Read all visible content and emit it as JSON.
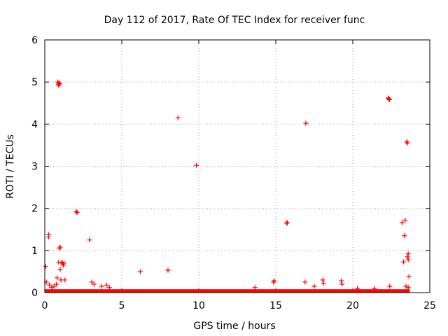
{
  "chart_data": {
    "type": "scatter",
    "title": "Day 112 of 2017, Rate Of TEC Index for receiver func",
    "xlabel": "GPS time / hours",
    "ylabel": "ROTI / TECUs",
    "xlim": [
      0,
      25
    ],
    "ylim": [
      0,
      6
    ],
    "x_ticks": [
      "0",
      "5",
      "10",
      "15",
      "20",
      "25"
    ],
    "y_ticks": [
      "0",
      "1",
      "2",
      "3",
      "4",
      "5",
      "6"
    ],
    "grid": true,
    "marker": "plus",
    "color": "#ff0000",
    "points": [
      [
        0.05,
        0.62
      ],
      [
        0.1,
        0.25
      ],
      [
        0.25,
        1.38
      ],
      [
        0.25,
        1.32
      ],
      [
        0.3,
        0.18
      ],
      [
        0.45,
        0.12
      ],
      [
        0.6,
        0.15
      ],
      [
        0.75,
        0.2
      ],
      [
        0.8,
        0.35
      ],
      [
        0.85,
        5.0
      ],
      [
        0.88,
        4.95
      ],
      [
        0.9,
        4.92
      ],
      [
        0.92,
        4.98
      ],
      [
        0.95,
        4.96
      ],
      [
        0.9,
        0.72
      ],
      [
        0.95,
        1.05
      ],
      [
        1.0,
        1.08
      ],
      [
        1.0,
        0.55
      ],
      [
        1.05,
        0.3
      ],
      [
        1.1,
        0.72
      ],
      [
        1.15,
        0.7
      ],
      [
        1.2,
        0.65
      ],
      [
        1.25,
        0.7
      ],
      [
        1.3,
        0.3
      ],
      [
        2.05,
        1.92
      ],
      [
        2.1,
        1.9
      ],
      [
        2.9,
        1.25
      ],
      [
        3.05,
        0.25
      ],
      [
        3.2,
        0.2
      ],
      [
        3.7,
        0.15
      ],
      [
        4.0,
        0.18
      ],
      [
        4.2,
        0.12
      ],
      [
        6.2,
        0.5
      ],
      [
        8.0,
        0.53
      ],
      [
        8.65,
        4.15
      ],
      [
        9.85,
        3.02
      ],
      [
        13.65,
        0.12
      ],
      [
        14.85,
        0.25
      ],
      [
        14.9,
        0.28
      ],
      [
        15.7,
        1.65
      ],
      [
        15.75,
        1.66
      ],
      [
        16.9,
        0.25
      ],
      [
        16.95,
        4.02
      ],
      [
        17.5,
        0.15
      ],
      [
        18.05,
        0.3
      ],
      [
        18.1,
        0.22
      ],
      [
        19.25,
        0.28
      ],
      [
        19.3,
        0.2
      ],
      [
        20.3,
        0.1
      ],
      [
        21.4,
        0.1
      ],
      [
        22.3,
        4.62
      ],
      [
        22.35,
        4.6
      ],
      [
        22.38,
        4.58
      ],
      [
        22.4,
        0.15
      ],
      [
        23.2,
        1.66
      ],
      [
        23.3,
        0.73
      ],
      [
        23.35,
        1.35
      ],
      [
        23.4,
        1.72
      ],
      [
        23.45,
        0.15
      ],
      [
        23.5,
        3.58
      ],
      [
        23.55,
        3.55
      ],
      [
        23.55,
        0.85
      ],
      [
        23.6,
        0.92
      ],
      [
        23.6,
        0.78
      ],
      [
        23.65,
        0.38
      ],
      [
        23.6,
        0.12
      ]
    ],
    "baseline_band": {
      "x_range": [
        0,
        23.7
      ],
      "y_range": [
        0,
        0.08
      ]
    }
  }
}
